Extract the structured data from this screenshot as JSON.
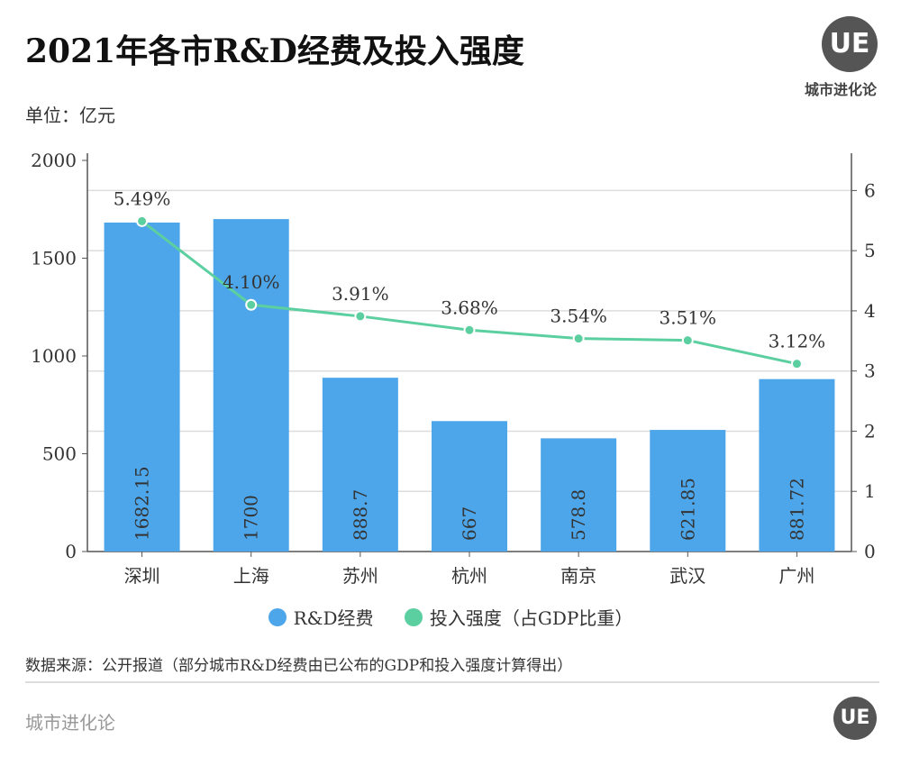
{
  "header": {
    "title": "2021年各市R&D经费及投入强度",
    "unit": "单位：亿元",
    "logo_text": "UE",
    "brand": "城市进化论"
  },
  "chart_data": {
    "type": "bar",
    "title": "2021年各市R&D经费及投入强度",
    "categories": [
      "深圳",
      "上海",
      "苏州",
      "杭州",
      "南京",
      "武汉",
      "广州"
    ],
    "series": [
      {
        "name": "R&D经费",
        "type": "bar",
        "axis": "left",
        "color": "#4da6ea",
        "values": [
          1682.15,
          1700,
          888.7,
          667,
          578.8,
          621.85,
          881.72
        ],
        "labels": [
          "1682.15",
          "1700",
          "888.7",
          "667",
          "578.8",
          "621.85",
          "881.72"
        ]
      },
      {
        "name": "投入强度（占GDP比重）",
        "type": "line",
        "axis": "right",
        "color": "#5ccfa0",
        "values": [
          5.49,
          4.1,
          3.91,
          3.68,
          3.54,
          3.51,
          3.12
        ],
        "labels": [
          "5.49%",
          "4.10%",
          "3.91%",
          "3.68%",
          "3.54%",
          "3.51%",
          "3.12%"
        ]
      }
    ],
    "left_axis": {
      "ylim": [
        0,
        2000
      ],
      "ticks": [
        "0",
        "500",
        "1000",
        "1500",
        "2000"
      ]
    },
    "right_axis": {
      "ylim": [
        0,
        6.5
      ],
      "ticks": [
        "0",
        "1",
        "2",
        "3",
        "4",
        "5",
        "6"
      ]
    },
    "grid": true,
    "legend": "bottom"
  },
  "source": "数据来源：公开报道（部分城市R&D经费由已公布的GDP和投入强度计算得出）",
  "footer": {
    "brand": "城市进化论",
    "logo_text": "UE"
  }
}
